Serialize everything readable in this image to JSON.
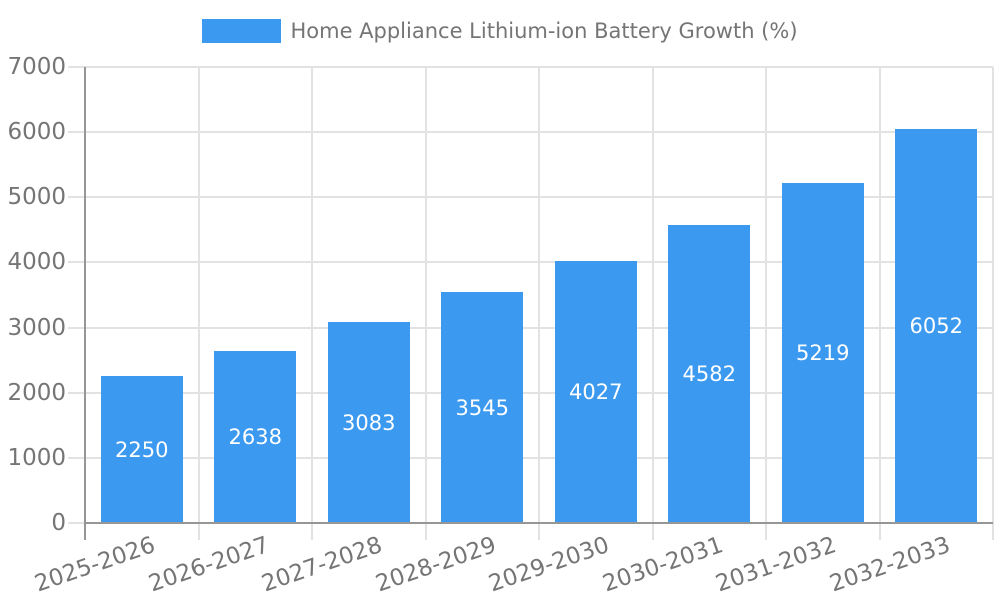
{
  "chart_data": {
    "type": "bar",
    "title": "Home Appliance Lithium-ion Battery Growth (%)",
    "categories": [
      "2025-2026",
      "2026-2027",
      "2027-2028",
      "2028-2029",
      "2029-2030",
      "2030-2031",
      "2031-2032",
      "2032-2033"
    ],
    "values": [
      2250,
      2638,
      3083,
      3545,
      4027,
      4582,
      5219,
      6052
    ],
    "series": [
      {
        "name": "Home Appliance Lithium-ion Battery Growth (%)",
        "values": [
          2250,
          2638,
          3083,
          3545,
          4027,
          4582,
          5219,
          6052
        ]
      }
    ],
    "yticks": [
      0,
      1000,
      2000,
      3000,
      4000,
      5000,
      6000,
      7000
    ],
    "ylim": [
      0,
      7000
    ],
    "xlabel": "",
    "ylabel": "",
    "legend_position": "top-center",
    "grid": "on",
    "value_labels": "inside-center",
    "x_label_rotation_deg": -19,
    "colors": {
      "bar": "#3B99F0",
      "axis_text": "#757575",
      "value_text": "#ffffff",
      "grid_line": "#e2e2e2",
      "axis_line": "#969696"
    }
  }
}
